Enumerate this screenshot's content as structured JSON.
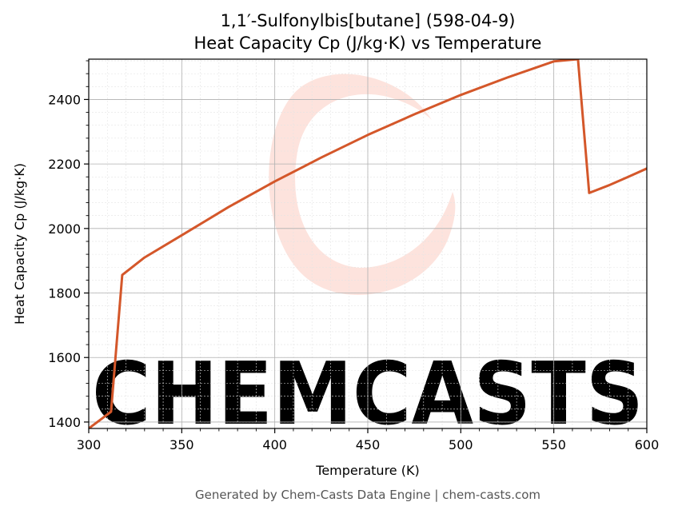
{
  "chart_data": {
    "type": "line",
    "title": "1,1′-Sulfonylbis[butane] (598-04-9)",
    "subtitle": "Heat Capacity Cp (J/kg·K) vs Temperature",
    "xlabel": "Temperature (K)",
    "ylabel": "Heat Capacity Cp (J/kg·K)",
    "xlim": [
      300,
      600
    ],
    "ylim": [
      1380,
      2525
    ],
    "x_ticks": [
      300,
      350,
      400,
      450,
      500,
      550,
      600
    ],
    "y_ticks": [
      1400,
      1600,
      1800,
      2000,
      2200,
      2400
    ],
    "grid": true,
    "legend": "none",
    "series": [
      {
        "color": "#d4572a",
        "x": [
          300,
          312,
          318,
          330,
          350,
          375,
          400,
          425,
          450,
          475,
          500,
          525,
          550,
          563,
          569,
          580,
          590,
          600
        ],
        "y": [
          1380,
          1432,
          1856,
          1910,
          1979,
          2066,
          2146,
          2220,
          2290,
          2354,
          2414,
          2468,
          2518,
          2525,
          2110,
          2135,
          2160,
          2186
        ]
      }
    ]
  },
  "watermark": {
    "text": "CHEMCASTS",
    "color": "#fde0d9"
  },
  "footer": "Generated by Chem-Casts Data Engine | chem-casts.com"
}
